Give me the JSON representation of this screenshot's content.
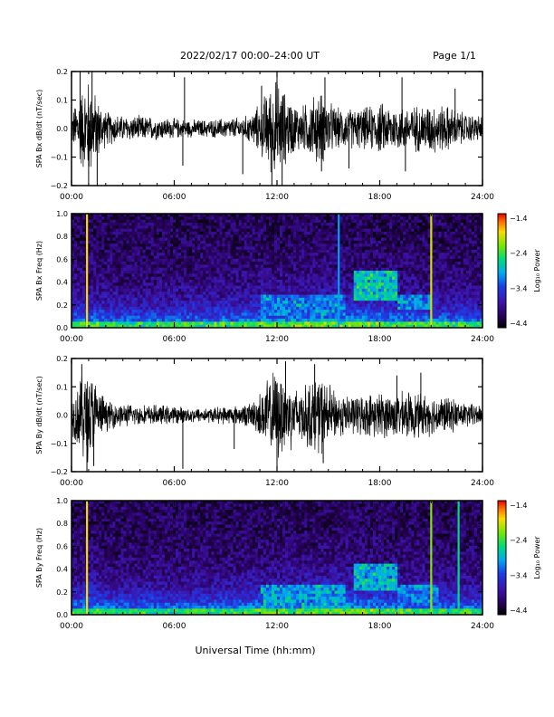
{
  "header": {
    "title": "2022/02/17  00:00–24:00 UT",
    "page": "Page 1/1"
  },
  "footer": {
    "xlabel": "Universal Time (hh:mm)"
  },
  "chart_data": [
    {
      "type": "line",
      "ylabel": "SPA Bx  dB/dt  (nT/sec)",
      "xlim": [
        0,
        24
      ],
      "ylim": [
        -0.2,
        0.2
      ],
      "x_ticks": [
        "00:00",
        "06:00",
        "12:00",
        "18:00",
        "24:00"
      ],
      "y_ticks": [
        "0.2",
        "0.1",
        "0.0",
        "−0.1",
        "−0.2"
      ],
      "amplitude_envelope": {
        "hours": [
          0,
          0.5,
          1,
          1.5,
          2,
          3,
          4,
          5,
          6,
          7,
          8,
          9,
          10,
          10.5,
          11,
          11.5,
          12,
          12.5,
          13,
          13.5,
          14,
          14.5,
          15,
          15.5,
          16,
          17,
          18,
          19,
          20,
          21,
          22,
          23,
          24
        ],
        "amp": [
          0.06,
          0.15,
          0.2,
          0.12,
          0.07,
          0.05,
          0.05,
          0.045,
          0.04,
          0.035,
          0.035,
          0.04,
          0.045,
          0.06,
          0.1,
          0.16,
          0.2,
          0.14,
          0.1,
          0.09,
          0.12,
          0.15,
          0.11,
          0.08,
          0.08,
          0.08,
          0.1,
          0.09,
          0.09,
          0.1,
          0.09,
          0.06,
          0.05
        ]
      },
      "spikes": [
        {
          "t": 0.5,
          "v": 0.2
        },
        {
          "t": 1.0,
          "v": -0.2
        },
        {
          "t": 1.2,
          "v": 0.2
        },
        {
          "t": 1.5,
          "v": -0.2
        },
        {
          "t": 6.6,
          "v": 0.18
        },
        {
          "t": 6.5,
          "v": -0.13
        },
        {
          "t": 10.0,
          "v": -0.16
        },
        {
          "t": 11.1,
          "v": 0.15
        },
        {
          "t": 11.7,
          "v": -0.2
        },
        {
          "t": 12.0,
          "v": 0.2
        },
        {
          "t": 12.3,
          "v": -0.2
        },
        {
          "t": 14.8,
          "v": 0.18
        },
        {
          "t": 14.6,
          "v": -0.15
        },
        {
          "t": 16.2,
          "v": -0.14
        },
        {
          "t": 19.3,
          "v": 0.18
        },
        {
          "t": 19.5,
          "v": -0.15
        },
        {
          "t": 22.4,
          "v": 0.14
        }
      ]
    },
    {
      "type": "heatmap",
      "ylabel": "SPA Bx  Freq  (Hz)",
      "xlim": [
        0,
        24
      ],
      "ylim": [
        0,
        1.0
      ],
      "x_ticks": [
        "00:00",
        "06:00",
        "12:00",
        "18:00",
        "24:00"
      ],
      "y_ticks": [
        "1.0",
        "0.8",
        "0.6",
        "0.4",
        "0.2",
        "0.0"
      ],
      "colorbar": {
        "label": "Log₁₀ Power",
        "range": [
          -4.4,
          -1.4
        ],
        "ticks": [
          "−1.4",
          "−2.4",
          "−3.4",
          "−4.4"
        ]
      },
      "vertical_stripes": [
        {
          "t": 0.9,
          "level": -1.9
        },
        {
          "t": 15.6,
          "level": -3.0
        },
        {
          "t": 21.0,
          "level": -2.0
        }
      ],
      "active_patches": [
        {
          "t0": 16.5,
          "t1": 19.0,
          "f0": 0.25,
          "f1": 0.5,
          "level": -2.8
        },
        {
          "t0": 11.0,
          "t1": 16.0,
          "f0": 0.1,
          "f1": 0.3,
          "level": -3.1
        },
        {
          "t0": 19.0,
          "t1": 21.0,
          "f0": 0.15,
          "f1": 0.3,
          "level": -3.1
        }
      ]
    },
    {
      "type": "line",
      "ylabel": "SPA By  dB/dt  (nT/sec)",
      "xlim": [
        0,
        24
      ],
      "ylim": [
        -0.2,
        0.2
      ],
      "x_ticks": [
        "00:00",
        "06:00",
        "12:00",
        "18:00",
        "24:00"
      ],
      "y_ticks": [
        "0.2",
        "0.1",
        "0.0",
        "−0.1",
        "−0.2"
      ],
      "amplitude_envelope": {
        "hours": [
          0,
          0.5,
          1,
          1.5,
          2,
          3,
          4,
          5,
          6,
          7,
          8,
          9,
          10,
          10.5,
          11,
          11.5,
          12,
          12.5,
          13,
          13.5,
          14,
          14.5,
          15,
          15.5,
          16,
          17,
          18,
          19,
          20,
          21,
          22,
          23,
          24
        ],
        "amp": [
          0.07,
          0.16,
          0.2,
          0.12,
          0.06,
          0.045,
          0.04,
          0.04,
          0.035,
          0.03,
          0.03,
          0.035,
          0.04,
          0.05,
          0.09,
          0.15,
          0.18,
          0.15,
          0.12,
          0.11,
          0.14,
          0.16,
          0.12,
          0.09,
          0.08,
          0.08,
          0.09,
          0.09,
          0.09,
          0.08,
          0.07,
          0.05,
          0.04
        ]
      },
      "spikes": [
        {
          "t": 0.6,
          "v": 0.18
        },
        {
          "t": 0.9,
          "v": -0.2
        },
        {
          "t": 1.3,
          "v": -0.18
        },
        {
          "t": 6.5,
          "v": -0.19
        },
        {
          "t": 9.5,
          "v": -0.12
        },
        {
          "t": 12.0,
          "v": -0.2
        },
        {
          "t": 12.5,
          "v": 0.19
        },
        {
          "t": 14.2,
          "v": 0.18
        },
        {
          "t": 14.7,
          "v": -0.17
        },
        {
          "t": 19.0,
          "v": 0.14
        },
        {
          "t": 20.4,
          "v": 0.15
        }
      ]
    },
    {
      "type": "heatmap",
      "ylabel": "SPA By  Freq  (Hz)",
      "xlim": [
        0,
        24
      ],
      "ylim": [
        0,
        1.0
      ],
      "x_ticks": [
        "00:00",
        "06:00",
        "12:00",
        "18:00",
        "24:00"
      ],
      "y_ticks": [
        "1.0",
        "0.8",
        "0.6",
        "0.4",
        "0.2",
        "0.0"
      ],
      "colorbar": {
        "label": "Log₁₀ Power",
        "range": [
          -4.4,
          -1.4
        ],
        "ticks": [
          "−1.4",
          "−2.4",
          "−3.4",
          "−4.4"
        ]
      },
      "vertical_stripes": [
        {
          "t": 0.9,
          "level": -1.9
        },
        {
          "t": 21.0,
          "level": -2.2
        },
        {
          "t": 22.6,
          "level": -2.6
        }
      ],
      "active_patches": [
        {
          "t0": 16.5,
          "t1": 19.0,
          "f0": 0.2,
          "f1": 0.45,
          "level": -2.9
        },
        {
          "t0": 11.0,
          "t1": 16.0,
          "f0": 0.05,
          "f1": 0.25,
          "level": -3.0
        },
        {
          "t0": 19.0,
          "t1": 21.5,
          "f0": 0.1,
          "f1": 0.25,
          "level": -3.1
        }
      ]
    }
  ]
}
